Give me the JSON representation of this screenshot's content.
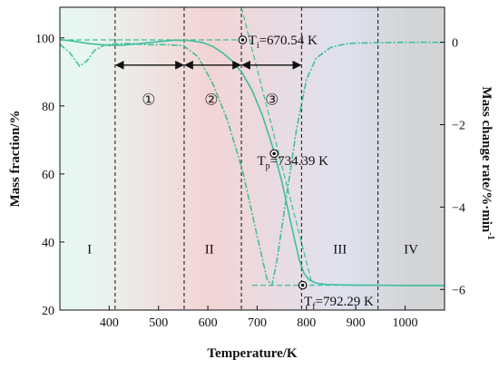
{
  "chart_data": {
    "type": "line",
    "xlabel": "Temperature/K",
    "ylabel_left": "Mass fraction/%",
    "ylabel_right": "Mass change rate/%·min",
    "ylabel_right_sup": "-1",
    "xlim": [
      300,
      1080
    ],
    "ylim_left": [
      20,
      109
    ],
    "ylim_right": [
      -6.5,
      0.85
    ],
    "x_ticks": [
      400,
      500,
      600,
      700,
      800,
      900,
      1000
    ],
    "y_left_ticks": [
      20,
      40,
      60,
      80,
      100
    ],
    "y_right_ticks": [
      0,
      -2,
      -4,
      -6
    ],
    "regions": [
      {
        "label": "I",
        "x_range": [
          300,
          412
        ],
        "color": "#e8f6f1"
      },
      {
        "label": "II",
        "x_range": [
          412,
          790
        ],
        "color": "#f3d4d4"
      },
      {
        "label": "III",
        "x_range": [
          790,
          945
        ],
        "color": "#dfe1ee"
      },
      {
        "label": "IV",
        "x_range": [
          945,
          1080
        ],
        "color": "#d2d4d6"
      }
    ],
    "dividers_x": [
      412,
      552,
      668,
      790,
      945
    ],
    "region_labels": [
      {
        "text": "I",
        "x": 360,
        "y": 38
      },
      {
        "text": "II",
        "x": 603,
        "y": 38
      },
      {
        "text": "III",
        "x": 868,
        "y": 38
      },
      {
        "text": "IV",
        "x": 1012,
        "y": 38
      }
    ],
    "stages": [
      {
        "label": "①",
        "x_range": [
          412,
          552
        ],
        "label_x": 480
      },
      {
        "label": "②",
        "x_range": [
          552,
          668
        ],
        "label_x": 607
      },
      {
        "label": "③",
        "x_range": [
          668,
          790
        ],
        "label_x": 730
      }
    ],
    "stage_arrow_y": 92,
    "stage_label_y": 82,
    "series": [
      {
        "axis": "left",
        "style": "solid",
        "x": [
          300,
          330,
          360,
          400,
          430,
          460,
          500,
          530,
          560,
          590,
          610,
          630,
          650,
          670,
          690,
          710,
          730,
          750,
          770,
          785,
          795,
          805,
          820,
          840,
          870,
          900,
          950,
          1000,
          1080
        ],
        "values": [
          99.5,
          99.0,
          98.3,
          97.8,
          97.9,
          98.3,
          98.9,
          99.3,
          99.3,
          98.6,
          97.5,
          95.6,
          93.1,
          89.6,
          84.5,
          77.5,
          68.6,
          57.8,
          44.5,
          35.0,
          30.8,
          28.9,
          27.9,
          27.5,
          27.4,
          27.3,
          27.3,
          27.2,
          27.2
        ]
      },
      {
        "axis": "right",
        "style": "dash-dot",
        "x": [
          300,
          320,
          340,
          355,
          370,
          390,
          410,
          440,
          480,
          520,
          550,
          580,
          610,
          640,
          670,
          700,
          720,
          730,
          740,
          760,
          780,
          800,
          820,
          850,
          880,
          900,
          950,
          1000,
          1080
        ],
        "values": [
          -0.05,
          -0.25,
          -0.58,
          -0.45,
          -0.2,
          -0.07,
          -0.04,
          -0.03,
          -0.06,
          -0.06,
          -0.08,
          -0.35,
          -1.0,
          -1.9,
          -3.1,
          -4.7,
          -5.75,
          -5.9,
          -5.3,
          -3.7,
          -2.1,
          -0.9,
          -0.38,
          -0.12,
          -0.04,
          -0.02,
          -0.01,
          0.0,
          0.0
        ]
      }
    ],
    "tangent_lines": [
      {
        "axis": "left",
        "x": [
          300,
          670
        ],
        "values": [
          99.4,
          99.4
        ]
      },
      {
        "axis": "left",
        "x": [
          668,
          812
        ],
        "values": [
          109,
          27.3
        ]
      },
      {
        "axis": "left",
        "x": [
          690,
          1080
        ],
        "values": [
          27.3,
          27.3
        ]
      }
    ],
    "annotations": [
      {
        "marker_x": 670.54,
        "marker_y": 99.4,
        "label_main": "T",
        "label_sub": "i",
        "label_value": "=670.54 K",
        "label_x": 682,
        "label_y": 99.4
      },
      {
        "marker_x": 734.39,
        "marker_y": 66.0,
        "label_main": "T",
        "label_sub": "p",
        "label_value": "=734.39 K",
        "label_x": 700,
        "label_y": 64.0
      },
      {
        "marker_x": 792.29,
        "marker_y": 27.3,
        "label_main": "T",
        "label_sub": "f",
        "label_value": "=792.29 K",
        "label_x": 795,
        "label_y": 22.6
      }
    ],
    "line_color": "#3fbf9c",
    "grid": false
  }
}
